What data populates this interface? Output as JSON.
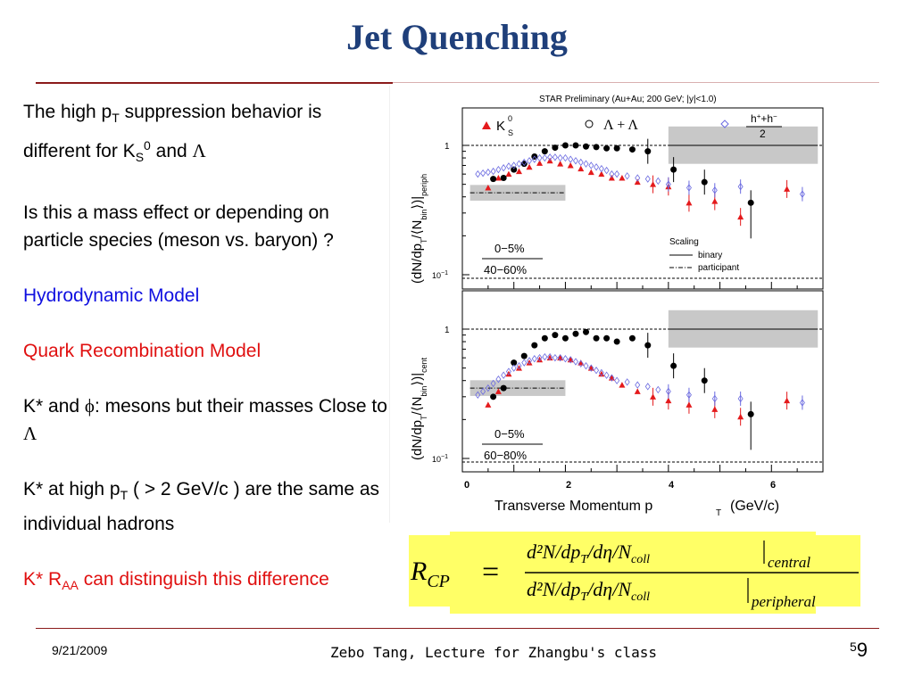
{
  "title": "Jet Quenching",
  "text": {
    "p1_a": "The high p",
    "p1_sub": "T",
    "p1_b": " suppression behavior is different for K",
    "p1_sub2": "S",
    "p1_sup": "0",
    "p1_c": " and ",
    "p1_lambda": "Λ",
    "p2": "Is this a mass effect or depending on particle species (meson vs. baryon) ?",
    "p3": "Hydrodynamic Model",
    "p4": "Quark Recombination Model",
    "p5_a": "K* and ",
    "p5_phi": "ϕ",
    "p5_b": ": mesons but their masses Close to ",
    "p5_lambda": "Λ",
    "p6_a": "K* at high p",
    "p6_sub": "T",
    "p6_b": " ( > 2 GeV/c ) are the same as individual hadrons",
    "p7_a": "K* R",
    "p7_sub": "AA",
    "p7_b": " can distinguish this difference"
  },
  "plot": {
    "header": "STAR Preliminary (Au+Au; 200 GeV; |y|<1.0)",
    "legend_k0s": "K",
    "legend_k0s_sup": "0",
    "legend_k0s_sub": "S",
    "legend_lambda": "Λ + Λ",
    "legend_h": "h",
    "legend_h_sup": "+",
    "legend_h_b": "+h",
    "legend_h_sup2": "−",
    "legend_h_den": "2",
    "scaling_title": "Scaling",
    "scaling_binary": "binary",
    "scaling_participant": "participant",
    "top_label_1": "0−5%",
    "top_label_2": "40−60%",
    "bottom_label_1": "0−5%",
    "bottom_label_2": "60−80%",
    "ylabel_top": "(dN/dp T/⟨Nbin⟩)|cent / (dN/dp T/⟨Nbin⟩)|periph",
    "ylabel_top_a": "(dN/dp",
    "ylabel_top_b": "/⟨N",
    "ylabel_top_c": "⟩)|",
    "ylabel_top_d": "periph",
    "ylabel_bot_a": "(dN/dp",
    "ylabel_bot_b": "/⟨N",
    "ylabel_bot_c": "⟩)|",
    "ylabel_bot_d": "cent",
    "ylabel_T": "T",
    "ylabel_bin": "bin",
    "xlabel": "Transverse Momentum p",
    "xlabel_sub": "T",
    "xlabel_unit": "(GeV/c)",
    "xticks": [
      "0",
      "2",
      "4",
      "6"
    ],
    "ytick_1": "1",
    "ytick_01": "10",
    "ytick_01_sup": "−1",
    "colors": {
      "k0s": "#e41a1c",
      "lambda": "#000000",
      "h": "#6a6ae0",
      "band": "#c8c8c8"
    }
  },
  "chart_data": {
    "type": "scatter",
    "title": "STAR Preliminary (Au+Au; 200 GeV; |y|<1.0)",
    "xlabel": "Transverse Momentum p T (GeV/c)",
    "ylabel": "(dN/dp T/⟨Nbin⟩)|cent / (dN/dp T/⟨Nbin⟩)|periph",
    "xlim": [
      0,
      7
    ],
    "ylim": [
      0.08,
      2
    ],
    "yscale": "log",
    "panels": [
      {
        "label": "0−5% / 40−60%",
        "series": [
          {
            "name": "K0S",
            "x": [
              0.5,
              0.7,
              0.9,
              1.1,
              1.3,
              1.5,
              1.7,
              1.9,
              2.1,
              2.3,
              2.5,
              2.7,
              2.9,
              3.1,
              3.4,
              3.7,
              4.0,
              4.4,
              4.9,
              5.4,
              6.3
            ],
            "y": [
              0.47,
              0.56,
              0.6,
              0.63,
              0.68,
              0.73,
              0.76,
              0.72,
              0.7,
              0.66,
              0.62,
              0.6,
              0.56,
              0.56,
              0.52,
              0.5,
              0.48,
              0.36,
              0.37,
              0.28,
              0.46
            ]
          },
          {
            "name": "Λ + Λ",
            "x": [
              0.6,
              0.8,
              1.0,
              1.2,
              1.4,
              1.6,
              1.8,
              2.0,
              2.2,
              2.4,
              2.6,
              2.8,
              3.0,
              3.3,
              3.6,
              4.1,
              4.7,
              5.6
            ],
            "y": [
              0.55,
              0.56,
              0.65,
              0.72,
              0.82,
              0.9,
              0.96,
              1.0,
              1.0,
              0.98,
              0.97,
              0.95,
              0.95,
              0.93,
              0.9,
              0.65,
              0.52,
              0.36
            ]
          },
          {
            "name": "h",
            "x": [
              0.3,
              0.4,
              0.5,
              0.6,
              0.7,
              0.8,
              0.9,
              1.0,
              1.1,
              1.2,
              1.3,
              1.4,
              1.5,
              1.6,
              1.7,
              1.8,
              1.9,
              2.0,
              2.1,
              2.2,
              2.3,
              2.4,
              2.5,
              2.6,
              2.7,
              2.8,
              2.9,
              3.0,
              3.2,
              3.4,
              3.6,
              3.8,
              4.0,
              4.4,
              4.9,
              5.4,
              6.6
            ],
            "y": [
              0.6,
              0.61,
              0.62,
              0.63,
              0.65,
              0.67,
              0.69,
              0.7,
              0.72,
              0.74,
              0.76,
              0.78,
              0.8,
              0.8,
              0.81,
              0.81,
              0.8,
              0.8,
              0.78,
              0.76,
              0.74,
              0.72,
              0.7,
              0.68,
              0.66,
              0.64,
              0.6,
              0.6,
              0.58,
              0.56,
              0.55,
              0.53,
              0.5,
              0.47,
              0.45,
              0.48,
              0.42
            ]
          }
        ]
      },
      {
        "label": "0−5% / 60−80%",
        "series": [
          {
            "name": "K0S",
            "x": [
              0.5,
              0.7,
              0.9,
              1.1,
              1.3,
              1.5,
              1.7,
              1.9,
              2.1,
              2.3,
              2.5,
              2.7,
              2.9,
              3.1,
              3.4,
              3.7,
              4.0,
              4.4,
              4.9,
              5.4,
              6.3
            ],
            "y": [
              0.26,
              0.33,
              0.45,
              0.5,
              0.55,
              0.58,
              0.6,
              0.6,
              0.58,
              0.55,
              0.5,
              0.45,
              0.42,
              0.37,
              0.33,
              0.3,
              0.28,
              0.26,
              0.24,
              0.21,
              0.28
            ]
          },
          {
            "name": "Λ + Λ",
            "x": [
              0.6,
              0.8,
              1.0,
              1.2,
              1.4,
              1.6,
              1.8,
              2.0,
              2.2,
              2.4,
              2.6,
              2.8,
              3.0,
              3.3,
              3.6,
              4.1,
              4.7,
              5.6
            ],
            "y": [
              0.3,
              0.35,
              0.55,
              0.62,
              0.75,
              0.85,
              0.9,
              0.85,
              0.92,
              0.95,
              0.85,
              0.85,
              0.8,
              0.85,
              0.75,
              0.52,
              0.4,
              0.22
            ]
          },
          {
            "name": "h",
            "x": [
              0.3,
              0.4,
              0.5,
              0.6,
              0.7,
              0.8,
              0.9,
              1.0,
              1.1,
              1.2,
              1.3,
              1.4,
              1.5,
              1.6,
              1.7,
              1.8,
              1.9,
              2.0,
              2.1,
              2.2,
              2.3,
              2.4,
              2.5,
              2.6,
              2.7,
              2.8,
              2.9,
              3.0,
              3.2,
              3.4,
              3.6,
              3.8,
              4.0,
              4.4,
              4.9,
              5.4,
              6.6
            ],
            "y": [
              0.31,
              0.33,
              0.35,
              0.38,
              0.41,
              0.44,
              0.47,
              0.5,
              0.52,
              0.55,
              0.57,
              0.59,
              0.6,
              0.61,
              0.61,
              0.6,
              0.6,
              0.59,
              0.58,
              0.56,
              0.54,
              0.52,
              0.5,
              0.48,
              0.46,
              0.44,
              0.42,
              0.4,
              0.39,
              0.37,
              0.36,
              0.34,
              0.33,
              0.31,
              0.29,
              0.29,
              0.27
            ]
          }
        ]
      }
    ]
  },
  "formula": {
    "lhs": "R",
    "lhs_sub": "CP",
    "eq": "=",
    "num": "d²N/dp",
    "num_T": "T",
    "num_b": "/dη/N",
    "num_coll": "coll",
    "num_sub": "central",
    "den": "d²N/dp",
    "den_T": "T",
    "den_b": "/dη/N",
    "den_coll": "coll",
    "den_sub": "peripheral",
    "bg": "#ffff66"
  },
  "footer": {
    "date": "9/21/2009",
    "center": "Zebo Tang, Lecture for Zhangbu's class",
    "page_small": "5",
    "page": "9"
  }
}
